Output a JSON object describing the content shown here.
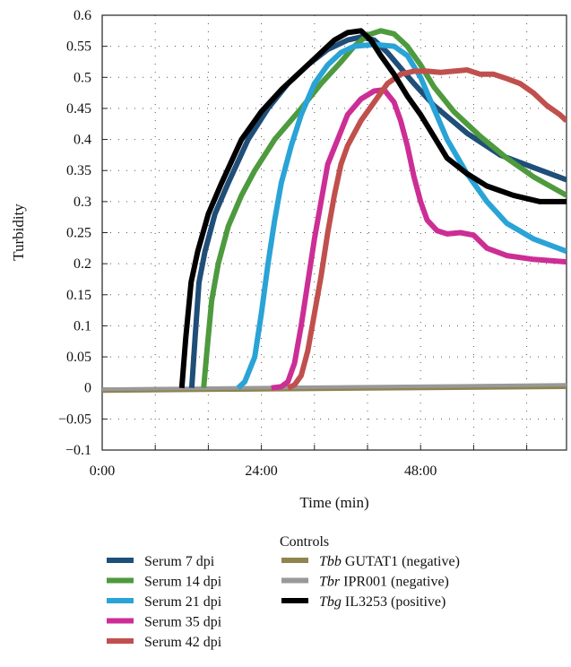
{
  "chart_data": {
    "type": "line",
    "xlabel": "Time (min)",
    "ylabel": "Turbidity",
    "xlim": [
      0,
      70
    ],
    "ylim": [
      -0.1,
      0.6
    ],
    "x_ticks": [
      0,
      24,
      48
    ],
    "x_tick_labels": [
      "0:00",
      "24:00",
      "48:00"
    ],
    "y_ticks": [
      -0.1,
      -0.05,
      0,
      0.05,
      0.1,
      0.15,
      0.2,
      0.25,
      0.3,
      0.35,
      0.4,
      0.45,
      0.5,
      0.55,
      0.6
    ],
    "y_tick_labels": [
      "−0.1",
      "−0.05",
      "0",
      "0.05",
      "0.1",
      "0.15",
      "0.2",
      "0.25",
      "0.3",
      "0.35",
      "0.4",
      "0.45",
      "0.5",
      "0.55",
      "0.6"
    ],
    "grid": true,
    "legend_position": "bottom",
    "controls_heading": "Controls",
    "series": [
      {
        "name": "Serum 7 dpi",
        "color": "#1f4e79",
        "legend_group": "serum",
        "points": [
          [
            13.5,
            0
          ],
          [
            14,
            0.08
          ],
          [
            14.6,
            0.17
          ],
          [
            15.5,
            0.22
          ],
          [
            17,
            0.28
          ],
          [
            19,
            0.33
          ],
          [
            22,
            0.4
          ],
          [
            25,
            0.45
          ],
          [
            28,
            0.49
          ],
          [
            31,
            0.52
          ],
          [
            34,
            0.545
          ],
          [
            37,
            0.56
          ],
          [
            39,
            0.565
          ],
          [
            41,
            0.56
          ],
          [
            43,
            0.54
          ],
          [
            45,
            0.515
          ],
          [
            47,
            0.49
          ],
          [
            50,
            0.455
          ],
          [
            55,
            0.41
          ],
          [
            60,
            0.375
          ],
          [
            65,
            0.355
          ],
          [
            70,
            0.335
          ]
        ]
      },
      {
        "name": "Serum 14 dpi",
        "color": "#4e9a3e",
        "legend_group": "serum",
        "points": [
          [
            15.3,
            0
          ],
          [
            15.8,
            0.06
          ],
          [
            16.5,
            0.14
          ],
          [
            17.5,
            0.2
          ],
          [
            19,
            0.26
          ],
          [
            21,
            0.31
          ],
          [
            23,
            0.35
          ],
          [
            26,
            0.4
          ],
          [
            30,
            0.45
          ],
          [
            33,
            0.49
          ],
          [
            36,
            0.525
          ],
          [
            38,
            0.55
          ],
          [
            40,
            0.568
          ],
          [
            42,
            0.575
          ],
          [
            44,
            0.57
          ],
          [
            46,
            0.55
          ],
          [
            48,
            0.52
          ],
          [
            50,
            0.485
          ],
          [
            53,
            0.445
          ],
          [
            57,
            0.405
          ],
          [
            61,
            0.37
          ],
          [
            65,
            0.34
          ],
          [
            70,
            0.31
          ]
        ]
      },
      {
        "name": "Serum 21 dpi",
        "color": "#2aa3d6",
        "legend_group": "serum",
        "points": [
          [
            20.5,
            0
          ],
          [
            21.5,
            0.01
          ],
          [
            23,
            0.05
          ],
          [
            24,
            0.12
          ],
          [
            25,
            0.2
          ],
          [
            26,
            0.27
          ],
          [
            27,
            0.33
          ],
          [
            28.5,
            0.39
          ],
          [
            30,
            0.44
          ],
          [
            32,
            0.49
          ],
          [
            34,
            0.52
          ],
          [
            36,
            0.54
          ],
          [
            38,
            0.55
          ],
          [
            41,
            0.553
          ],
          [
            44,
            0.55
          ],
          [
            46,
            0.535
          ],
          [
            48,
            0.5
          ],
          [
            50,
            0.45
          ],
          [
            52,
            0.4
          ],
          [
            55,
            0.345
          ],
          [
            58,
            0.3
          ],
          [
            61,
            0.265
          ],
          [
            65,
            0.24
          ],
          [
            70,
            0.22
          ]
        ]
      },
      {
        "name": "Serum 35 dpi",
        "color": "#cc2e95",
        "legend_group": "serum",
        "points": [
          [
            25.5,
            0
          ],
          [
            27,
            0.002
          ],
          [
            28,
            0.01
          ],
          [
            29,
            0.04
          ],
          [
            30,
            0.1
          ],
          [
            31,
            0.17
          ],
          [
            32,
            0.24
          ],
          [
            33,
            0.3
          ],
          [
            34,
            0.36
          ],
          [
            35.5,
            0.4
          ],
          [
            37,
            0.44
          ],
          [
            39,
            0.465
          ],
          [
            41,
            0.478
          ],
          [
            42.5,
            0.48
          ],
          [
            44,
            0.46
          ],
          [
            45,
            0.43
          ],
          [
            46,
            0.39
          ],
          [
            47,
            0.34
          ],
          [
            48,
            0.3
          ],
          [
            49,
            0.27
          ],
          [
            50.5,
            0.253
          ],
          [
            52,
            0.248
          ],
          [
            54,
            0.25
          ],
          [
            56,
            0.246
          ],
          [
            58,
            0.225
          ],
          [
            61,
            0.213
          ],
          [
            65,
            0.207
          ],
          [
            70,
            0.203
          ]
        ]
      },
      {
        "name": "Serum 42 dpi",
        "color": "#c0504d",
        "legend_group": "serum",
        "points": [
          [
            28,
            0
          ],
          [
            29,
            0.005
          ],
          [
            30,
            0.02
          ],
          [
            31,
            0.06
          ],
          [
            32,
            0.12
          ],
          [
            33,
            0.18
          ],
          [
            34,
            0.25
          ],
          [
            35,
            0.31
          ],
          [
            36,
            0.36
          ],
          [
            37,
            0.39
          ],
          [
            39,
            0.43
          ],
          [
            41,
            0.46
          ],
          [
            43,
            0.49
          ],
          [
            45,
            0.505
          ],
          [
            47,
            0.51
          ],
          [
            49,
            0.51
          ],
          [
            51,
            0.508
          ],
          [
            53,
            0.51
          ],
          [
            55,
            0.512
          ],
          [
            57,
            0.505
          ],
          [
            59,
            0.505
          ],
          [
            61,
            0.498
          ],
          [
            63,
            0.49
          ],
          [
            65,
            0.475
          ],
          [
            67,
            0.455
          ],
          [
            69,
            0.44
          ],
          [
            70,
            0.43
          ]
        ]
      },
      {
        "name": "GUTAT1 (negative)",
        "name_prefix": "Tbb",
        "color": "#8e8450",
        "legend_group": "controls",
        "points": [
          [
            0,
            -0.005
          ],
          [
            70,
            0.001
          ]
        ]
      },
      {
        "name": "IPR001 (negative)",
        "name_prefix": "Tbr",
        "color": "#999999",
        "legend_group": "controls",
        "points": [
          [
            0,
            -0.002
          ],
          [
            70,
            0.005
          ]
        ]
      },
      {
        "name": "IL3253 (positive)",
        "name_prefix": "Tbg",
        "color": "#000000",
        "legend_group": "controls",
        "points": [
          [
            12,
            0
          ],
          [
            12.6,
            0.08
          ],
          [
            13.4,
            0.17
          ],
          [
            14.4,
            0.22
          ],
          [
            16,
            0.28
          ],
          [
            18,
            0.33
          ],
          [
            21,
            0.4
          ],
          [
            24,
            0.445
          ],
          [
            27,
            0.48
          ],
          [
            30,
            0.51
          ],
          [
            33,
            0.54
          ],
          [
            35,
            0.56
          ],
          [
            37,
            0.572
          ],
          [
            39,
            0.575
          ],
          [
            40.5,
            0.56
          ],
          [
            42,
            0.535
          ],
          [
            44,
            0.505
          ],
          [
            46,
            0.47
          ],
          [
            48,
            0.44
          ],
          [
            50,
            0.405
          ],
          [
            52,
            0.37
          ],
          [
            55,
            0.345
          ],
          [
            58,
            0.325
          ],
          [
            62,
            0.31
          ],
          [
            66,
            0.3
          ],
          [
            70,
            0.3
          ]
        ]
      }
    ]
  }
}
